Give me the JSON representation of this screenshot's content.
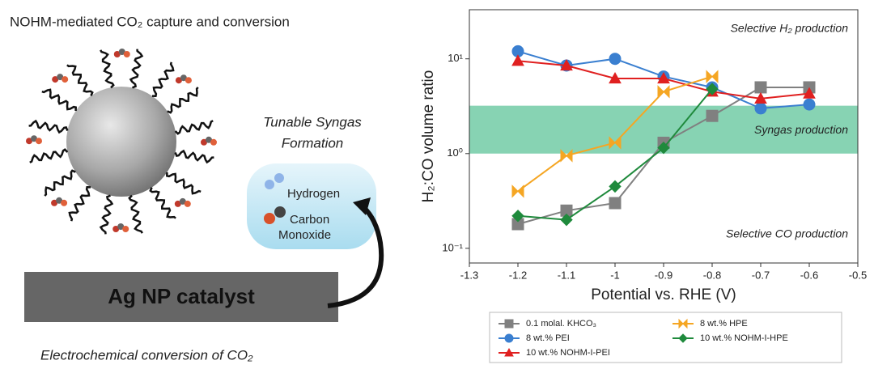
{
  "diagram": {
    "title": "NOHM-mediated CO₂ capture and conversion",
    "syngas_label": [
      "Tunable Syngas",
      "Formation"
    ],
    "hydrogen": "Hydrogen",
    "co": [
      "Carbon",
      "Monoxide"
    ],
    "catalyst": "Ag NP catalyst",
    "caption": "Electrochemical conversion of CO₂"
  },
  "chart_data": {
    "type": "line",
    "xlabel": "Potential vs. RHE (V)",
    "ylabel": "H₂:CO volume ratio",
    "annotations": [
      "Selective H₂ production",
      "Syngas production",
      "Selective CO production"
    ],
    "band": [
      1,
      3.2
    ],
    "band_color": "#5fc49a",
    "log_y": true,
    "xlim": [
      -1.3,
      -0.5
    ],
    "xticks": [
      -1.3,
      -1.2,
      -1.1,
      -1.0,
      -0.9,
      -0.8,
      -0.7,
      -0.6,
      -0.5
    ],
    "ylim": [
      0.07,
      33
    ],
    "yticks": [
      {
        "value": 0.1,
        "label": "10⁻¹"
      },
      {
        "value": 1,
        "label": "10⁰"
      },
      {
        "value": 10,
        "label": "10¹"
      }
    ],
    "x": [
      -1.2,
      -1.1,
      -1.0,
      -0.9,
      -0.8,
      -0.7,
      -0.6
    ],
    "series": [
      {
        "name": "0.1 molal. KHCO₃",
        "color": "#808080",
        "marker": "square",
        "values": [
          0.18,
          0.25,
          0.3,
          1.3,
          2.5,
          5.0,
          5.0
        ]
      },
      {
        "name": "8 wt.% PEI",
        "color": "#3a7fd0",
        "marker": "circle",
        "values": [
          12,
          8.5,
          10,
          6.5,
          5.0,
          3.0,
          3.3
        ]
      },
      {
        "name": "10 wt.% NOHM-I-PEI",
        "color": "#e02020",
        "marker": "triangle",
        "values": [
          9.5,
          8.5,
          6.2,
          6.2,
          4.5,
          3.8,
          4.3
        ]
      },
      {
        "name": "8 wt.% HPE",
        "color": "#f5a623",
        "marker": "bowtie",
        "values": [
          0.4,
          0.95,
          1.3,
          4.5,
          6.5,
          null,
          null
        ]
      },
      {
        "name": "10 wt.% NOHM-I-HPE",
        "color": "#1f8a3c",
        "marker": "diamond",
        "values": [
          0.22,
          0.2,
          0.45,
          1.15,
          4.8,
          null,
          null
        ]
      }
    ]
  }
}
